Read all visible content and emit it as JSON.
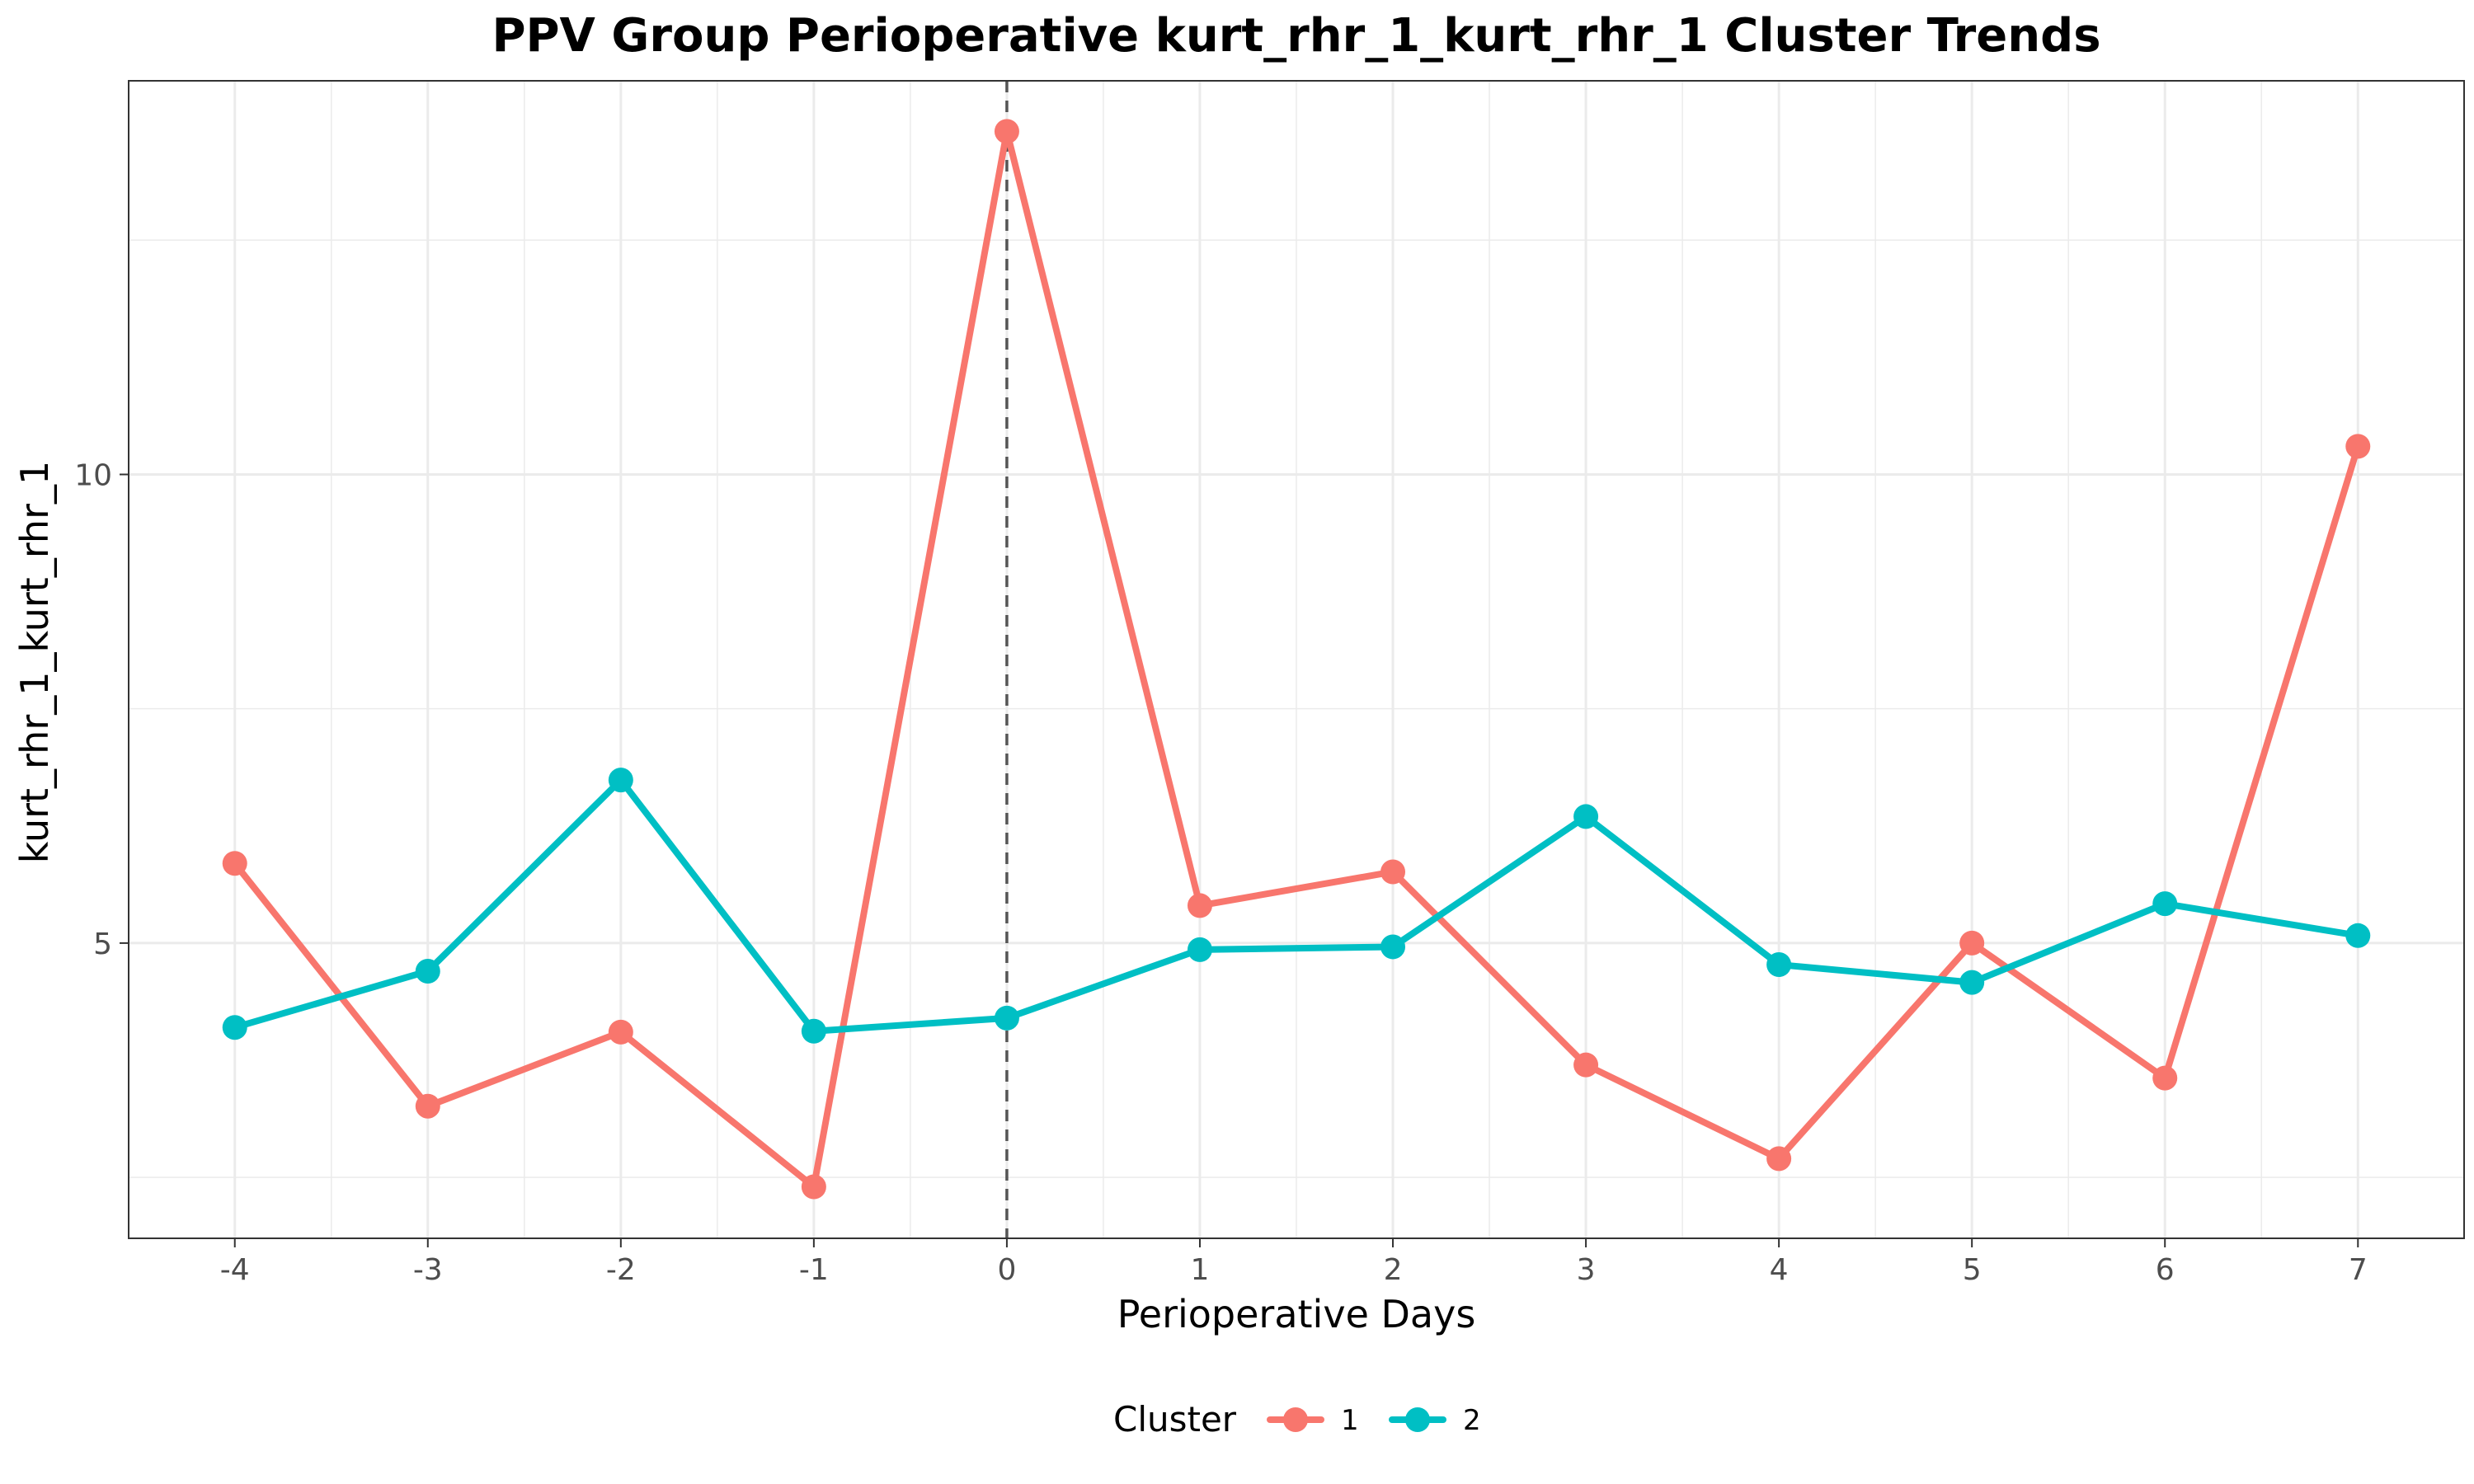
{
  "chart_data": {
    "type": "line",
    "title": "PPV Group Perioperative kurt_rhr_1_kurt_rhr_1 Cluster Trends",
    "xlabel": "Perioperative Days",
    "ylabel": "kurt_rhr_1_kurt_rhr_1",
    "x": [
      -4,
      -3,
      -2,
      -1,
      0,
      1,
      2,
      3,
      4,
      5,
      6,
      7
    ],
    "x_tick_labels": [
      "-4",
      "-3",
      "-2",
      "-1",
      "0",
      "1",
      "2",
      "3",
      "4",
      "5",
      "6",
      "7"
    ],
    "y_ticks": [
      5,
      10
    ],
    "y_tick_labels": [
      "5",
      "10"
    ],
    "xlim": [
      -4.55,
      7.55
    ],
    "ylim": [
      1.85,
      14.2
    ],
    "grid": true,
    "reference_line": {
      "x": 0,
      "style": "dashed"
    },
    "legend": {
      "title": "Cluster",
      "position": "bottom"
    },
    "series": [
      {
        "name": "1",
        "color": "#F8766D",
        "values": [
          5.85,
          3.26,
          4.05,
          2.4,
          13.66,
          5.4,
          5.76,
          3.7,
          2.7,
          5.0,
          3.56,
          10.3
        ]
      },
      {
        "name": "2",
        "color": "#00BFC4",
        "values": [
          4.1,
          4.7,
          6.74,
          4.06,
          4.2,
          4.93,
          4.96,
          6.35,
          4.77,
          4.58,
          5.42,
          5.08
        ]
      }
    ]
  }
}
